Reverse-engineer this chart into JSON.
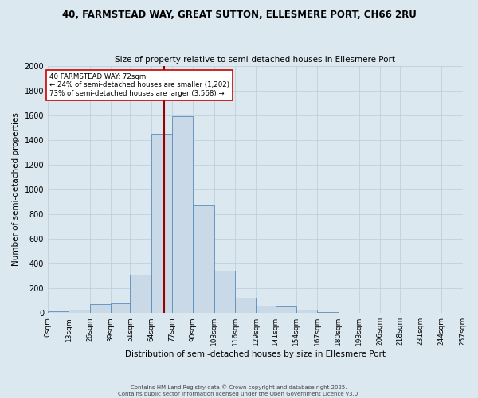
{
  "title1": "40, FARMSTEAD WAY, GREAT SUTTON, ELLESMERE PORT, CH66 2RU",
  "title2": "Size of property relative to semi-detached houses in Ellesmere Port",
  "xlabel": "Distribution of semi-detached houses by size in Ellesmere Port",
  "ylabel": "Number of semi-detached properties",
  "bin_labels": [
    "0sqm",
    "13sqm",
    "26sqm",
    "39sqm",
    "51sqm",
    "64sqm",
    "77sqm",
    "90sqm",
    "103sqm",
    "116sqm",
    "129sqm",
    "141sqm",
    "154sqm",
    "167sqm",
    "180sqm",
    "193sqm",
    "206sqm",
    "218sqm",
    "231sqm",
    "244sqm",
    "257sqm"
  ],
  "bin_edges": [
    0,
    13,
    26,
    39,
    51,
    64,
    77,
    90,
    103,
    116,
    129,
    141,
    154,
    167,
    180,
    193,
    206,
    218,
    231,
    244,
    257
  ],
  "bar_heights": [
    15,
    30,
    70,
    80,
    310,
    1450,
    1590,
    870,
    340,
    125,
    60,
    50,
    25,
    10,
    0,
    0,
    0,
    0,
    0,
    0
  ],
  "bar_color": "#c9d9e8",
  "bar_edge_color": "#5b8db8",
  "property_value": 72,
  "vline_color": "#990000",
  "ylim": [
    0,
    2000
  ],
  "yticks": [
    0,
    200,
    400,
    600,
    800,
    1000,
    1200,
    1400,
    1600,
    1800,
    2000
  ],
  "annotation_line1": "40 FARMSTEAD WAY: 72sqm",
  "annotation_line2": "← 24% of semi-detached houses are smaller (1,202)",
  "annotation_line3": "73% of semi-detached houses are larger (3,568) →",
  "annotation_box_color": "#ffffff",
  "annotation_box_edge": "#cc0000",
  "grid_color": "#b8ccd8",
  "bg_color": "#dce8f0",
  "title1_fontsize": 8.5,
  "title2_fontsize": 7.5,
  "footer": "Contains HM Land Registry data © Crown copyright and database right 2025.\nContains public sector information licensed under the Open Government Licence v3.0."
}
